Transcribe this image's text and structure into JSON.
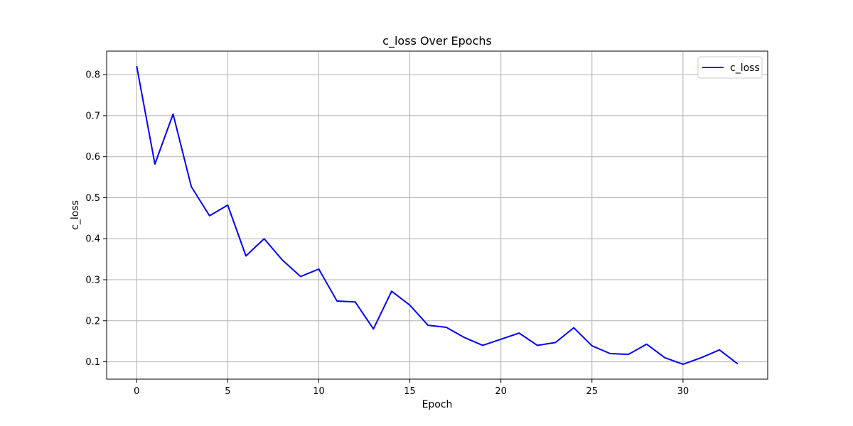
{
  "chart_data": {
    "type": "line",
    "title": "c_loss Over Epochs",
    "xlabel": "Epoch",
    "ylabel": "c_loss",
    "xlim": [
      -1.65,
      34.65
    ],
    "ylim": [
      0.0577,
      0.8574
    ],
    "x_ticks": [
      0,
      5,
      10,
      15,
      20,
      25,
      30
    ],
    "y_ticks": [
      0.1,
      0.2,
      0.3,
      0.4,
      0.5,
      0.6,
      0.7,
      0.8
    ],
    "grid": true,
    "legend_position": "top-right",
    "series": [
      {
        "name": "c_loss",
        "color": "#0000ff",
        "x": [
          0,
          1,
          2,
          3,
          4,
          5,
          6,
          7,
          8,
          9,
          10,
          11,
          12,
          13,
          14,
          15,
          16,
          17,
          18,
          19,
          20,
          21,
          22,
          23,
          24,
          25,
          26,
          27,
          28,
          29,
          30,
          31,
          32,
          33
        ],
        "values": [
          0.821,
          0.582,
          0.704,
          0.527,
          0.456,
          0.482,
          0.358,
          0.4,
          0.348,
          0.308,
          0.326,
          0.248,
          0.246,
          0.18,
          0.272,
          0.238,
          0.189,
          0.184,
          0.159,
          0.14,
          0.155,
          0.17,
          0.14,
          0.147,
          0.183,
          0.139,
          0.12,
          0.118,
          0.143,
          0.11,
          0.094,
          0.11,
          0.129,
          0.095
        ]
      }
    ]
  }
}
